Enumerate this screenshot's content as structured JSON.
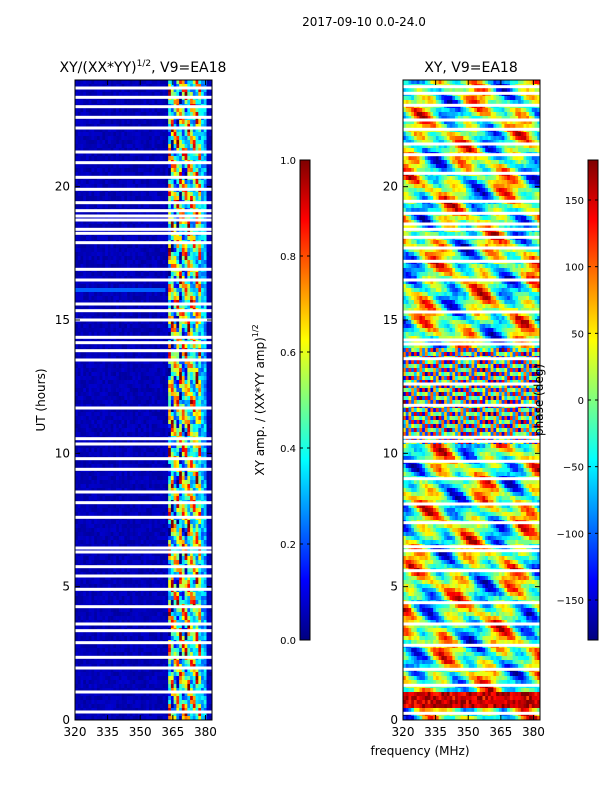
{
  "suptitle": "2017-09-10 0.0-24.0",
  "colors": {
    "stops": [
      "#00007f",
      "#0000ff",
      "#007fff",
      "#00ffff",
      "#7fff7f",
      "#ffff00",
      "#ff7f00",
      "#ff0000",
      "#7f0000"
    ],
    "gap": "#ffffff"
  },
  "chart_data": [
    {
      "type": "heatmap",
      "id": "amp",
      "title_main": "XY/(XX*YY)",
      "title_sup": "1/2",
      "title_tail": ", V9=EA18",
      "xlabel": "",
      "ylabel": "UT (hours)",
      "xlim": [
        320,
        383
      ],
      "ylim": [
        0,
        24
      ],
      "xticks": [
        320,
        335,
        350,
        365,
        380
      ],
      "yticks": [
        0,
        5,
        10,
        15,
        20
      ],
      "row_gaps_hours": [
        0.3,
        1.05,
        1.95,
        2.35,
        2.9,
        3.35,
        3.6,
        4.25,
        4.9,
        5.4,
        5.75,
        6.3,
        6.45,
        7.6,
        8.15,
        8.55,
        9.4,
        9.8,
        10.35,
        10.55,
        11.7,
        13.5,
        13.85,
        14.15,
        14.35,
        15.0,
        15.35,
        15.6,
        16.5,
        16.9,
        17.9,
        18.25,
        18.4,
        18.75,
        18.9,
        19.1,
        19.4,
        19.9,
        20.35,
        20.9,
        21.3,
        22.2,
        22.6,
        23.0,
        23.35,
        23.7
      ],
      "colorbar": {
        "label_main": "XY amp. / (XX*YY amp)",
        "label_sup": "1/2",
        "range": [
          0,
          1
        ],
        "ticks": [
          "0.0",
          "0.2",
          "0.4",
          "0.6",
          "0.8",
          "1.0"
        ]
      }
    },
    {
      "type": "heatmap",
      "id": "phase",
      "title_main": "XY, V9=EA18",
      "xlabel": "frequency (MHz)",
      "ylabel": "",
      "xlim": [
        320,
        383
      ],
      "ylim": [
        0,
        24
      ],
      "xticks": [
        320,
        335,
        350,
        365,
        380
      ],
      "yticks": [
        0,
        5,
        10,
        15,
        20
      ],
      "row_gaps_hours": [
        0.25,
        1.3,
        1.9,
        2.8,
        3.6,
        4.4,
        5.6,
        6.35,
        6.5,
        7.4,
        8.1,
        9.05,
        9.7,
        10.45,
        10.6,
        11.8,
        12.6,
        13.55,
        14.1,
        14.25,
        15.3,
        16.5,
        17.2,
        17.7,
        18.1,
        18.4,
        18.6,
        19.0,
        19.45,
        20.5,
        21.2,
        21.6,
        22.15,
        22.5,
        23.05,
        23.5,
        23.75
      ],
      "colorbar": {
        "label_main": "phase (deg)",
        "range": [
          -180,
          180
        ],
        "ticks": [
          "−150",
          "−100",
          "−50",
          "0",
          "50",
          "100",
          "150"
        ]
      }
    }
  ]
}
